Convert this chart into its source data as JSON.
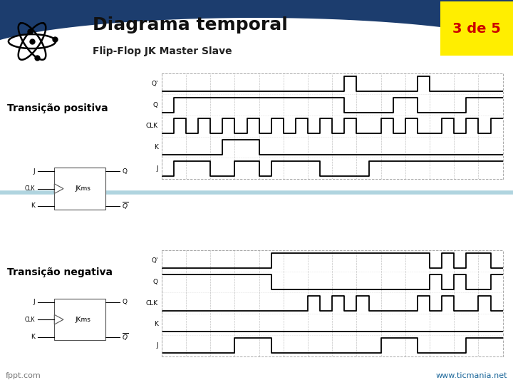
{
  "title": "Diagrama temporal",
  "subtitle": "Flip-Flop JK Master Slave",
  "page_label": "3 de 5",
  "label1": "Transição positiva",
  "label2": "Transição negativa",
  "footer_left": "fppt.com",
  "footer_right": "www.ticmania.net",
  "header_color": "#1c3d6e",
  "badge_color": "#ffee00",
  "badge_text_color": "#cc0000",
  "separator_color": "#a8d0dc",
  "footer_right_color": "#1a6699",
  "footer_left_color": "#777777",
  "label_color": "#000000",
  "pos_signals": {
    "J": [
      0,
      1,
      1,
      1,
      0,
      0,
      1,
      1,
      0,
      1,
      1,
      1,
      1,
      0,
      0,
      0,
      0,
      1,
      1,
      1,
      1,
      1,
      1,
      1,
      1,
      1,
      1,
      1
    ],
    "K": [
      0,
      0,
      0,
      0,
      0,
      1,
      1,
      1,
      0,
      0,
      0,
      0,
      0,
      0,
      0,
      0,
      0,
      0,
      0,
      0,
      0,
      0,
      0,
      0,
      0,
      0,
      0,
      0
    ],
    "CLK": [
      0,
      1,
      0,
      1,
      0,
      1,
      0,
      1,
      0,
      1,
      0,
      1,
      0,
      1,
      0,
      1,
      0,
      0,
      1,
      0,
      1,
      0,
      0,
      1,
      0,
      1,
      0,
      1
    ],
    "Q": [
      0,
      1,
      1,
      1,
      1,
      1,
      1,
      1,
      1,
      1,
      1,
      1,
      1,
      1,
      1,
      0,
      0,
      0,
      0,
      1,
      1,
      0,
      0,
      0,
      0,
      1,
      1,
      1
    ],
    "Qb": [
      0,
      0,
      0,
      0,
      0,
      0,
      0,
      0,
      0,
      0,
      0,
      0,
      0,
      0,
      0,
      1,
      0,
      0,
      0,
      0,
      0,
      1,
      0,
      0,
      0,
      0,
      0,
      0
    ]
  },
  "neg_signals": {
    "J": [
      0,
      0,
      0,
      0,
      0,
      0,
      1,
      1,
      1,
      0,
      0,
      0,
      0,
      0,
      0,
      0,
      0,
      0,
      1,
      1,
      1,
      0,
      0,
      0,
      0,
      1,
      1,
      1
    ],
    "K": [
      0,
      0,
      0,
      0,
      0,
      0,
      0,
      0,
      0,
      0,
      0,
      0,
      0,
      0,
      0,
      0,
      0,
      0,
      0,
      0,
      0,
      0,
      0,
      0,
      0,
      0,
      0,
      0
    ],
    "CLK": [
      0,
      0,
      0,
      0,
      0,
      0,
      0,
      0,
      0,
      0,
      0,
      0,
      1,
      0,
      1,
      0,
      1,
      0,
      0,
      0,
      0,
      1,
      0,
      1,
      0,
      0,
      1,
      0
    ],
    "Q": [
      1,
      1,
      1,
      1,
      1,
      1,
      1,
      1,
      1,
      0,
      0,
      0,
      0,
      0,
      0,
      0,
      0,
      0,
      0,
      0,
      0,
      0,
      1,
      0,
      1,
      0,
      0,
      1
    ],
    "Qb": [
      0,
      0,
      0,
      0,
      0,
      0,
      0,
      0,
      0,
      1,
      1,
      1,
      1,
      1,
      1,
      1,
      1,
      1,
      1,
      1,
      1,
      1,
      0,
      1,
      0,
      1,
      1,
      0
    ]
  }
}
